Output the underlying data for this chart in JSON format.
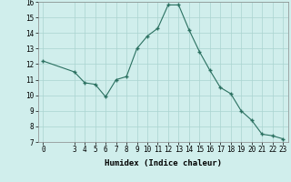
{
  "x": [
    0,
    3,
    4,
    5,
    6,
    7,
    8,
    9,
    10,
    11,
    12,
    13,
    14,
    15,
    16,
    17,
    18,
    19,
    20,
    21,
    22,
    23
  ],
  "y": [
    12.2,
    11.5,
    10.8,
    10.7,
    9.9,
    11.0,
    11.2,
    13.0,
    13.8,
    14.3,
    15.8,
    15.8,
    14.2,
    12.8,
    11.6,
    10.5,
    10.1,
    9.0,
    8.4,
    7.5,
    7.4,
    7.2
  ],
  "line_color": "#2a7060",
  "marker_color": "#2a7060",
  "bg_color": "#d0eeec",
  "grid_color": "#aad4d0",
  "xlabel": "Humidex (Indice chaleur)",
  "ylim": [
    7,
    16
  ],
  "xlim": [
    -0.5,
    23.5
  ],
  "yticks": [
    7,
    8,
    9,
    10,
    11,
    12,
    13,
    14,
    15,
    16
  ],
  "xticks": [
    0,
    3,
    4,
    5,
    6,
    7,
    8,
    9,
    10,
    11,
    12,
    13,
    14,
    15,
    16,
    17,
    18,
    19,
    20,
    21,
    22,
    23
  ],
  "label_fontsize": 6.5,
  "tick_fontsize": 5.5
}
